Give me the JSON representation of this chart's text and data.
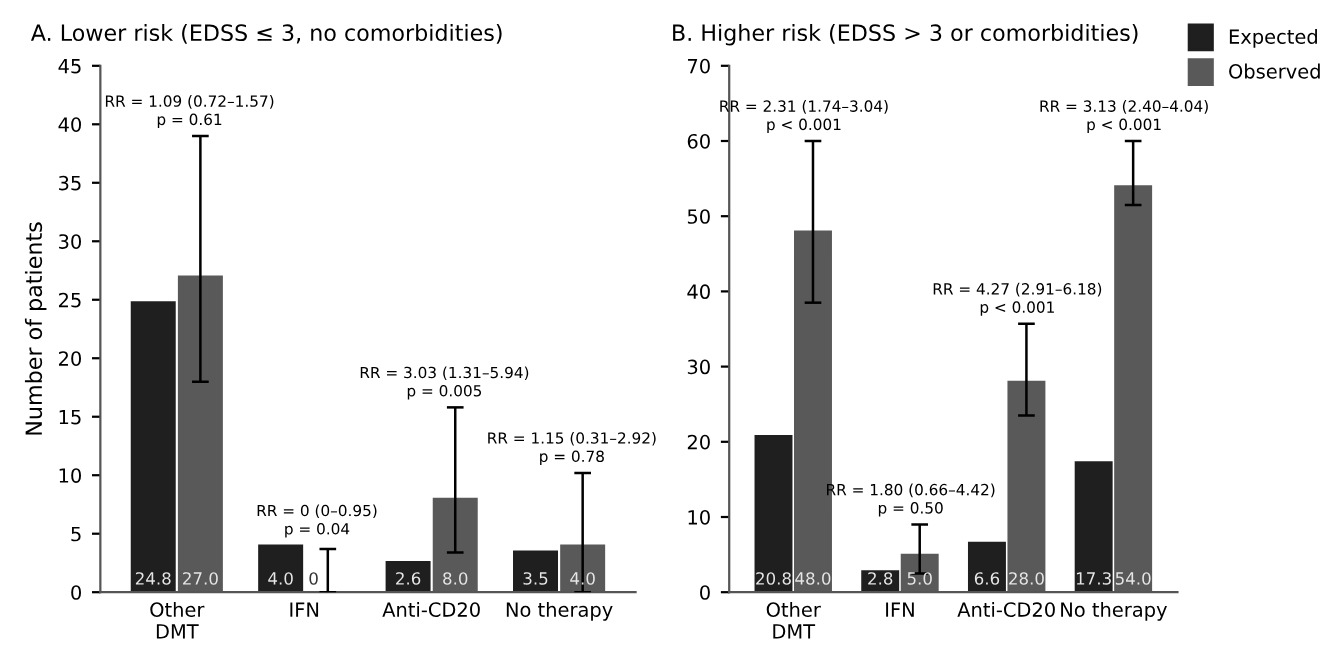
{
  "chart_data": [
    {
      "type": "bar",
      "title": "A. Lower risk (EDSS ≤ 3, no comorbidities)",
      "ylabel": "Number of patients",
      "categories": [
        "Other\nDMT",
        "IFN",
        "Anti-CD20",
        "No therapy"
      ],
      "ylim": [
        0,
        45
      ],
      "yticks": [
        0,
        5,
        10,
        15,
        20,
        25,
        30,
        35,
        40,
        45
      ],
      "grid": false,
      "series": [
        {
          "color": "#1f1f1f",
          "values": [
            24.8,
            4.0,
            2.6,
            3.5
          ],
          "value_labels": [
            "24.8",
            "4.0",
            "2.6",
            "3.5"
          ]
        },
        {
          "color": "#595959",
          "values": [
            27.0,
            0,
            8.0,
            4.0
          ],
          "value_labels": [
            "27.0",
            "0",
            "8.0",
            "4.0"
          ],
          "errors": [
            [
              18,
              39
            ],
            [
              0,
              3.7
            ],
            [
              3.4,
              15.8
            ],
            [
              0,
              10.2
            ]
          ]
        }
      ],
      "annotations": [
        "RR = 1.09 (0.72–1.57)\np = 0.61",
        "RR = 0 (0–0.95)\np = 0.04",
        "RR = 3.03 (1.31–5.94)\np = 0.005",
        "RR = 1.15 (0.31–2.92)\np = 0.78"
      ]
    },
    {
      "type": "bar",
      "title": "B. Higher risk (EDSS > 3 or comorbidities)",
      "categories": [
        "Other\nDMT",
        "IFN",
        "Anti-CD20",
        "No therapy"
      ],
      "ylim": [
        0,
        70
      ],
      "yticks": [
        0,
        10,
        20,
        30,
        40,
        50,
        60,
        70
      ],
      "grid": false,
      "legend": "top right",
      "series": [
        {
          "name": "Expected",
          "color": "#1f1f1f",
          "values": [
            20.8,
            2.8,
            6.6,
            17.3
          ],
          "value_labels": [
            "20.8",
            "2.8",
            "6.6",
            "17.3"
          ]
        },
        {
          "name": "Observed",
          "color": "#595959",
          "values": [
            48.0,
            5.0,
            28.0,
            54.0
          ],
          "value_labels": [
            "48.0",
            "5.0",
            "28.0",
            "54.0"
          ],
          "errors": [
            [
              38.5,
              60
            ],
            [
              2.5,
              9
            ],
            [
              23.5,
              35.7
            ],
            [
              51.5,
              60
            ]
          ]
        }
      ],
      "annotations": [
        "RR = 2.31 (1.74–3.04)\np < 0.001",
        "RR = 1.80 (0.66–4.42)\np = 0.50",
        "RR = 4.27 (2.91–6.18)\np < 0.001",
        "RR = 3.13 (2.40–4.04)\np < 0.001"
      ]
    }
  ]
}
